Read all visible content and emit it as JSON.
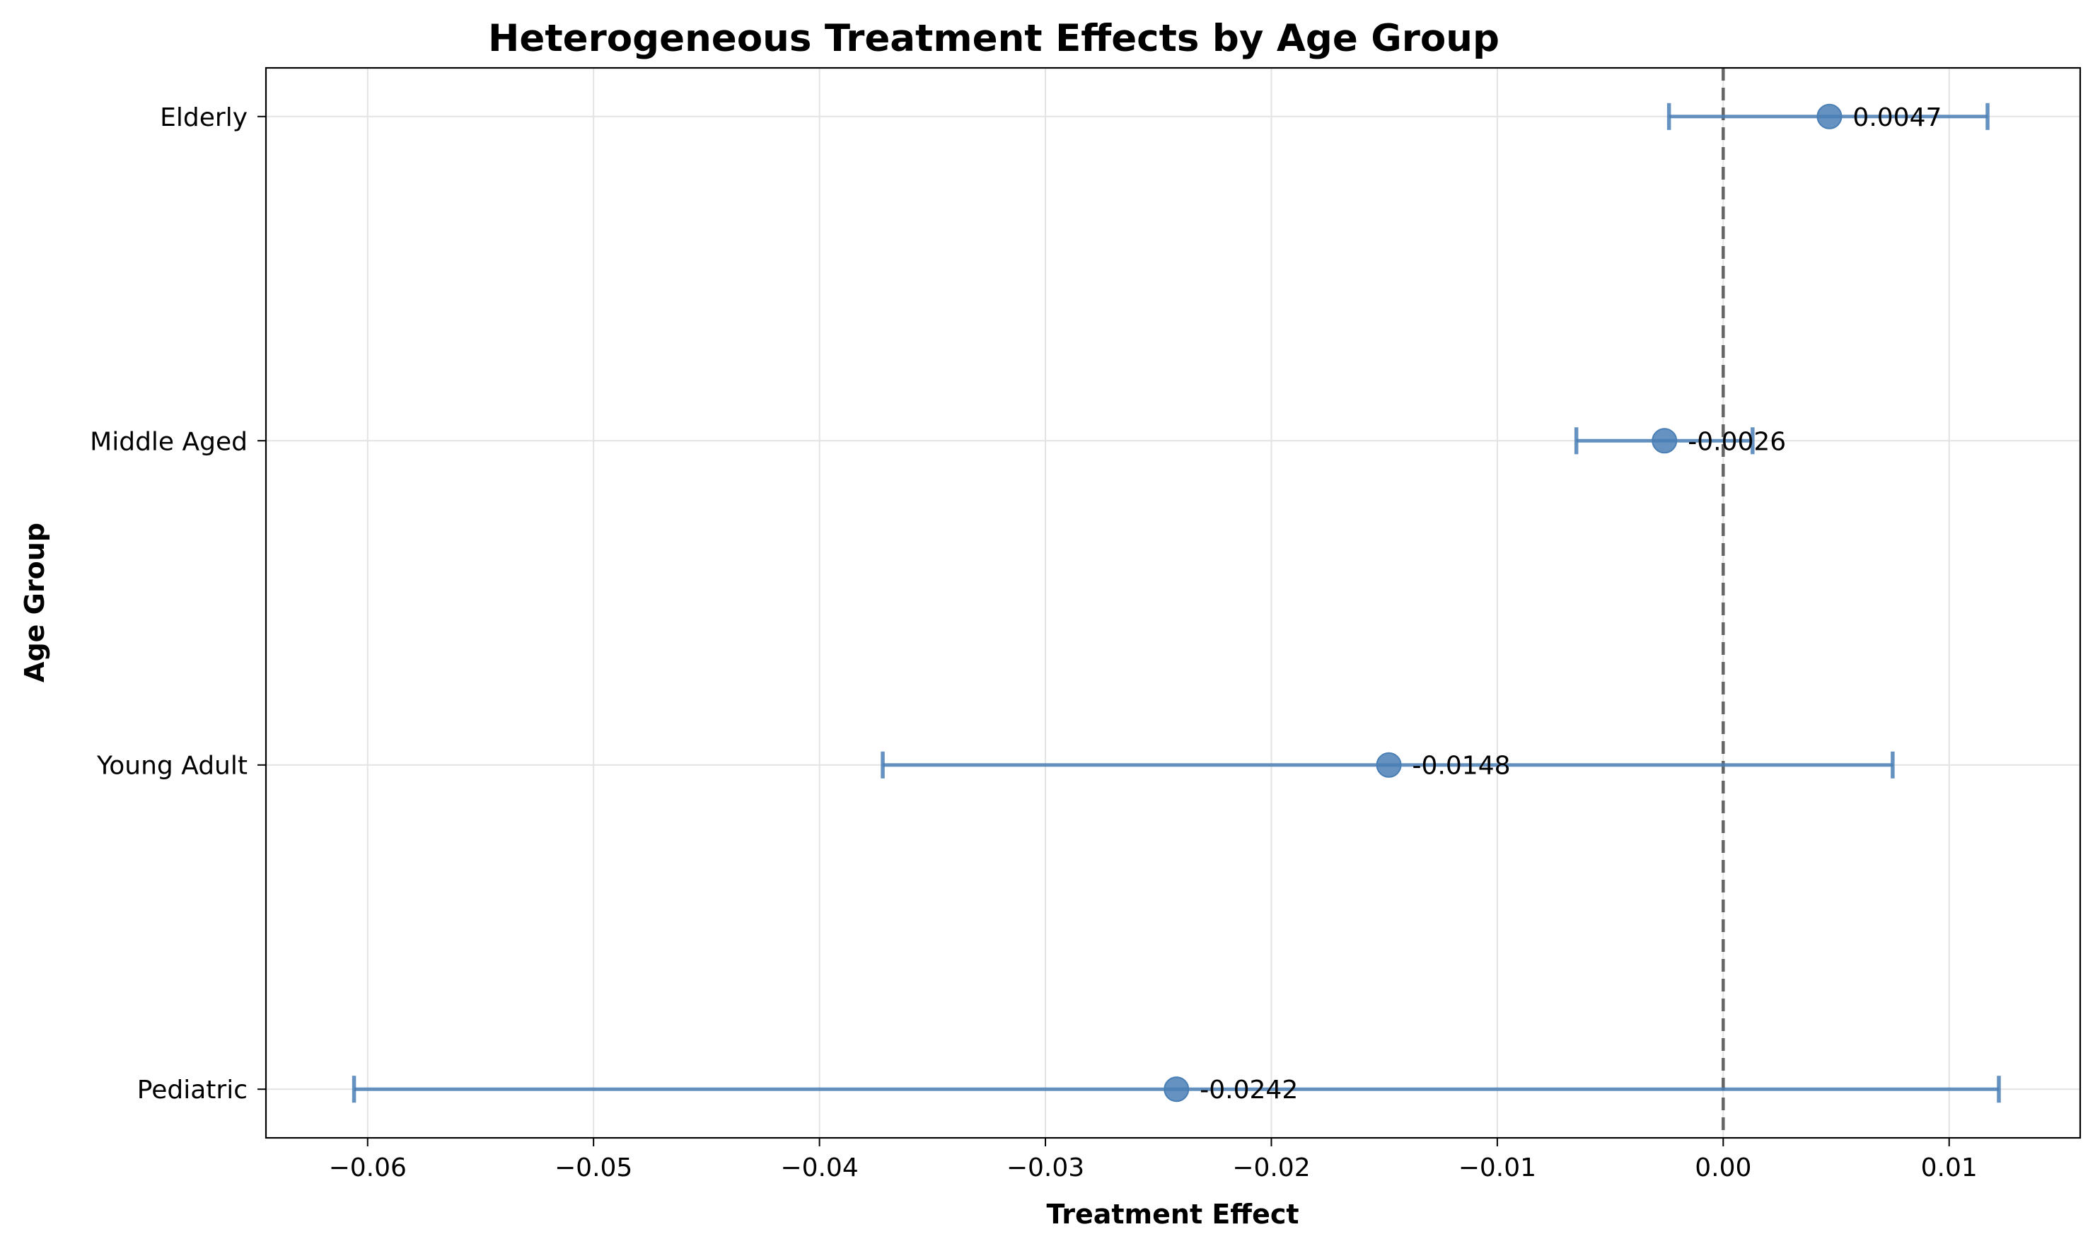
{
  "chart_data": {
    "type": "scatter",
    "title": "Heterogeneous Treatment Effects by Age Group",
    "xlabel": "Treatment Effect",
    "ylabel": "Age Group",
    "xlim": [
      -0.0645,
      0.0158
    ],
    "x_ticks": [
      -0.06,
      -0.05,
      -0.04,
      -0.03,
      -0.02,
      -0.01,
      0.0,
      0.01
    ],
    "x_tick_labels": [
      "−0.06",
      "−0.05",
      "−0.04",
      "−0.03",
      "−0.02",
      "−0.01",
      "0.00",
      "0.01"
    ],
    "categories": [
      "Pediatric",
      "Young Adult",
      "Middle Aged",
      "Elderly"
    ],
    "values": [
      -0.0242,
      -0.0148,
      -0.0026,
      0.0047
    ],
    "value_labels": [
      "-0.0242",
      "-0.0148",
      "-0.0026",
      "0.0047"
    ],
    "ci_lower": [
      -0.0606,
      -0.0372,
      -0.0065,
      -0.0024
    ],
    "ci_upper": [
      0.0122,
      0.0075,
      0.0013,
      0.0117
    ],
    "reference_line_x": 0.0,
    "grid": true,
    "color": "#4a7fb5"
  }
}
